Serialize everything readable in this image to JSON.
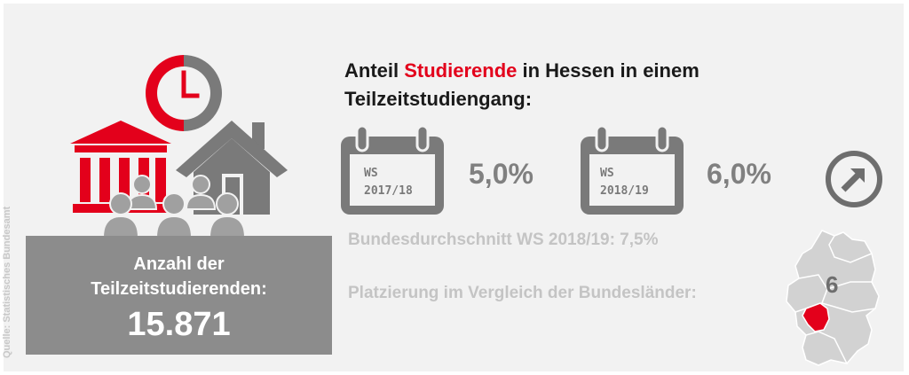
{
  "source_note": "Quelle: Statistisches Bundesamt",
  "headline": {
    "part1": "Anteil ",
    "accent": "Studierende",
    "part2": " in Hessen in einem",
    "line2": "Teilzeitstudiengang:"
  },
  "semesters": [
    {
      "label_line1": "WS",
      "label_line2": "2017/18",
      "share": "5,0%"
    },
    {
      "label_line1": "WS",
      "label_line2": "2018/19",
      "share": "6,0%"
    }
  ],
  "national_average": "Bundesdurchschnitt WS 2018/19: 7,5%",
  "ranking_label": "Platzierung im Vergleich der Bundesländer:",
  "ranking_value": "6",
  "count": {
    "label_line1": "Anzahl der",
    "label_line2": "Teilzeitstudierenden:",
    "value": "15.871"
  },
  "colors": {
    "accent": "#e3001b",
    "gray": "#8c8c8c",
    "light_gray": "#c4c4c4"
  },
  "icons": [
    "clock-icon",
    "university-building-icon",
    "house-icon",
    "people-group-icon",
    "calendar-icon",
    "arrow-right-circle-icon",
    "germany-map-icon"
  ]
}
